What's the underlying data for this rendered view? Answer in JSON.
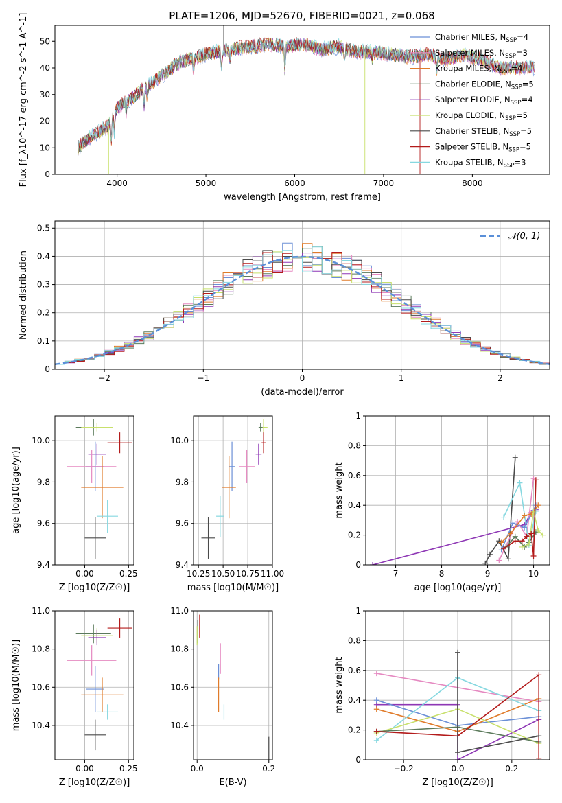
{
  "figure_title": "PLATE=1206, MJD=52670, FIBERID=0021, z=0.068",
  "chart_data": [
    {
      "id": "spectrum",
      "type": "line",
      "xlabel": "wavelength [Angstrom, rest frame]",
      "ylabel": "Flux [f_λ10^-17 erg cm^-2 s^-1 A^-1]",
      "xlim": [
        3300,
        8870
      ],
      "ylim": [
        0,
        56
      ],
      "xticks": [
        4000,
        5000,
        6000,
        7000,
        8000
      ],
      "yticks": [
        0,
        10,
        20,
        30,
        40,
        50
      ],
      "grid": false,
      "legend_position": "top-right",
      "continuum": {
        "x": [
          3560,
          3700,
          3900,
          4000,
          4100,
          4300,
          4500,
          4700,
          4900,
          5100,
          5300,
          5500,
          5700,
          5900,
          6100,
          6300,
          6500,
          6700,
          6900,
          7100,
          7300,
          7500,
          7700,
          7900,
          8100,
          8300,
          8500,
          8700
        ],
        "y": [
          10,
          14,
          18,
          25,
          27,
          32,
          37,
          42,
          44,
          46,
          47,
          48,
          49,
          48,
          49,
          47,
          48,
          46,
          46,
          45,
          44,
          45,
          43,
          45,
          43,
          40,
          40,
          40
        ]
      },
      "series": [
        {
          "name": "Chabrier MILES, N_SSP=4",
          "color": "#6b8fd6"
        },
        {
          "name": "Salpeter MILES, N_SSP=3",
          "color": "#e589c1"
        },
        {
          "name": "Kroupa MILES, N_SSP=4",
          "color": "#e07b2a"
        },
        {
          "name": "Chabrier ELODIE, N_SSP=5",
          "color": "#5b7a5b"
        },
        {
          "name": "Salpeter ELODIE, N_SSP=4",
          "color": "#8e37b5"
        },
        {
          "name": "Kroupa ELODIE, N_SSP=5",
          "color": "#c8e06c"
        },
        {
          "name": "Chabrier STELIB, N_SSP=5",
          "color": "#4a4a4a"
        },
        {
          "name": "Salpeter STELIB, N_SSP=5",
          "color": "#b31b1b"
        },
        {
          "name": "Kroupa STELIB, N_SSP=3",
          "color": "#86d8e0"
        }
      ]
    },
    {
      "id": "residuals",
      "type": "line",
      "xlabel": "(data-model)/error",
      "ylabel": "Normed distribution",
      "xlim": [
        -2.5,
        2.5
      ],
      "ylim": [
        0,
        0.525
      ],
      "xticks": [
        -2,
        -1,
        0,
        1,
        2
      ],
      "yticks": [
        0.0,
        0.1,
        0.2,
        0.3,
        0.4,
        0.5
      ],
      "grid": true,
      "legend_position": "top-right",
      "legend": "N(0,1)",
      "gaussian_color": "#5a8fd8",
      "bin_width": 0.1,
      "bin_start": -2.5
    },
    {
      "id": "age_vs_Z",
      "type": "scatter",
      "xlabel": "Z [log10(Z/Z☉)]",
      "ylabel": "age [log10(age/yr)]",
      "xlim": [
        -0.17,
        0.28
      ],
      "ylim": [
        9.4,
        10.12
      ],
      "xticks": [
        0.0,
        0.25
      ],
      "xtick_labels": [
        "0.00",
        "0.25"
      ],
      "yticks": [
        9.4,
        9.6,
        9.8,
        10.0
      ],
      "ytick_labels": [
        "9.4",
        "9.6",
        "9.8",
        "10.0"
      ],
      "grid": true,
      "points": [
        {
          "x": 0.05,
          "y": 10.065,
          "xerr": 0.1,
          "yerr": 0.04,
          "color": "#5b7a5b"
        },
        {
          "x": 0.07,
          "y": 10.065,
          "xerr": 0.09,
          "yerr": 0.02,
          "color": "#c8e06c"
        },
        {
          "x": 0.2,
          "y": 9.99,
          "xerr": 0.07,
          "yerr": 0.05,
          "color": "#b31b1b"
        },
        {
          "x": 0.07,
          "y": 9.935,
          "xerr": 0.05,
          "yerr": 0.05,
          "color": "#8e37b5"
        },
        {
          "x": 0.06,
          "y": 9.875,
          "xerr": 0.05,
          "yerr": 0.12,
          "color": "#6b8fd6"
        },
        {
          "x": 0.04,
          "y": 9.875,
          "xerr": 0.14,
          "yerr": 0.08,
          "color": "#e589c1"
        },
        {
          "x": 0.1,
          "y": 9.775,
          "xerr": 0.12,
          "yerr": 0.15,
          "color": "#e07b2a"
        },
        {
          "x": 0.13,
          "y": 9.635,
          "xerr": 0.06,
          "yerr": 0.08,
          "color": "#86d8e0"
        },
        {
          "x": 0.06,
          "y": 9.53,
          "xerr": 0.06,
          "yerr": 0.1,
          "color": "#4a4a4a"
        }
      ]
    },
    {
      "id": "age_vs_mass",
      "type": "scatter",
      "xlabel": "mass [log10(M/M☉)]",
      "ylabel": "",
      "xlim": [
        10.2,
        11.0
      ],
      "ylim": [
        9.4,
        10.12
      ],
      "xticks": [
        10.25,
        10.5,
        10.75,
        11.0
      ],
      "xtick_labels": [
        "10.25",
        "10.50",
        "10.75",
        "11.00"
      ],
      "yticks": [
        9.4,
        9.6,
        9.8,
        10.0
      ],
      "ytick_labels": [
        "9.4",
        "9.6",
        "9.8",
        "10.0"
      ],
      "grid": true,
      "points": [
        {
          "x": 10.91,
          "y": 10.065,
          "xerr": 0.04,
          "yerr": 0.04,
          "color": "#c8e06c"
        },
        {
          "x": 10.88,
          "y": 10.065,
          "xerr": 0.02,
          "yerr": 0.02,
          "color": "#5b7a5b"
        },
        {
          "x": 10.91,
          "y": 9.99,
          "xerr": 0.02,
          "yerr": 0.05,
          "color": "#b31b1b"
        },
        {
          "x": 10.86,
          "y": 9.935,
          "xerr": 0.03,
          "yerr": 0.05,
          "color": "#8e37b5"
        },
        {
          "x": 10.59,
          "y": 9.875,
          "xerr": 0.03,
          "yerr": 0.12,
          "color": "#6b8fd6"
        },
        {
          "x": 10.74,
          "y": 9.875,
          "xerr": 0.08,
          "yerr": 0.08,
          "color": "#e589c1"
        },
        {
          "x": 10.56,
          "y": 9.775,
          "xerr": 0.07,
          "yerr": 0.15,
          "color": "#e07b2a"
        },
        {
          "x": 10.47,
          "y": 9.635,
          "xerr": 0.04,
          "yerr": 0.1,
          "color": "#86d8e0"
        },
        {
          "x": 10.35,
          "y": 9.53,
          "xerr": 0.07,
          "yerr": 0.1,
          "color": "#4a4a4a"
        }
      ]
    },
    {
      "id": "weight_vs_age",
      "type": "line",
      "xlabel": "age [log10(age/yr)]",
      "ylabel": "mass weight",
      "xlim": [
        6.35,
        10.35
      ],
      "ylim": [
        0.0,
        1.0
      ],
      "xticks": [
        7,
        8,
        9,
        10
      ],
      "yticks": [
        0.0,
        0.2,
        0.4,
        0.6,
        0.8,
        1.0
      ],
      "grid": true,
      "series": [
        {
          "color": "#8e37b5",
          "x": [
            6.5,
            9.8,
            9.95,
            10.05
          ],
          "y": [
            0.0,
            0.27,
            0.35,
            0.37
          ]
        },
        {
          "color": "#4a4a4a",
          "x": [
            8.95,
            9.05,
            9.25,
            9.45,
            9.6
          ],
          "y": [
            0.01,
            0.07,
            0.16,
            0.04,
            0.72
          ]
        },
        {
          "color": "#e589c1",
          "x": [
            9.25,
            9.65,
            9.85,
            10.0
          ],
          "y": [
            0.03,
            0.29,
            0.19,
            0.58
          ]
        },
        {
          "color": "#86d8e0",
          "x": [
            9.35,
            9.7,
            9.9,
            10.05
          ],
          "y": [
            0.32,
            0.55,
            0.13,
            0.36
          ]
        },
        {
          "color": "#6b8fd6",
          "x": [
            9.3,
            9.55,
            9.8,
            10.05
          ],
          "y": [
            0.1,
            0.28,
            0.25,
            0.4
          ]
        },
        {
          "color": "#e07b2a",
          "x": [
            9.3,
            9.5,
            9.8,
            9.95,
            10.1
          ],
          "y": [
            0.15,
            0.21,
            0.33,
            0.34,
            0.4
          ]
        },
        {
          "color": "#5b7a5b",
          "x": [
            9.4,
            9.6,
            9.8,
            9.9,
            10.05
          ],
          "y": [
            0.12,
            0.19,
            0.12,
            0.15,
            0.22
          ]
        },
        {
          "color": "#c8e06c",
          "x": [
            9.75,
            9.9,
            10.0,
            10.1,
            10.2
          ],
          "y": [
            0.12,
            0.14,
            0.36,
            0.23,
            0.2
          ]
        },
        {
          "color": "#b31b1b",
          "x": [
            9.35,
            9.6,
            9.75,
            9.85,
            9.95,
            10.0,
            10.05
          ],
          "y": [
            0.11,
            0.16,
            0.16,
            0.19,
            0.21,
            0.06,
            0.57
          ]
        }
      ]
    },
    {
      "id": "mass_vs_Z",
      "type": "scatter",
      "xlabel": "Z [log10(Z/Z☉)]",
      "ylabel": "mass [log10(M/M☉)]",
      "xlim": [
        -0.17,
        0.28
      ],
      "ylim": [
        10.22,
        11.0
      ],
      "xticks": [
        0.0,
        0.25
      ],
      "xtick_labels": [
        "0.00",
        "0.25"
      ],
      "yticks": [
        10.4,
        10.6,
        10.8,
        11.0
      ],
      "ytick_labels": [
        "10.4",
        "10.6",
        "10.8",
        "11.0"
      ],
      "grid": true,
      "points": [
        {
          "x": 0.2,
          "y": 10.91,
          "xerr": 0.07,
          "yerr": 0.05,
          "color": "#b31b1b"
        },
        {
          "x": 0.05,
          "y": 10.88,
          "xerr": 0.1,
          "yerr": 0.05,
          "color": "#5b7a5b"
        },
        {
          "x": 0.07,
          "y": 10.87,
          "xerr": 0.09,
          "yerr": 0.04,
          "color": "#c8e06c"
        },
        {
          "x": 0.07,
          "y": 10.86,
          "xerr": 0.05,
          "yerr": 0.04,
          "color": "#8e37b5"
        },
        {
          "x": 0.04,
          "y": 10.74,
          "xerr": 0.14,
          "yerr": 0.08,
          "color": "#e589c1"
        },
        {
          "x": 0.06,
          "y": 10.59,
          "xerr": 0.05,
          "yerr": 0.12,
          "color": "#6b8fd6"
        },
        {
          "x": 0.1,
          "y": 10.56,
          "xerr": 0.12,
          "yerr": 0.09,
          "color": "#e07b2a"
        },
        {
          "x": 0.13,
          "y": 10.47,
          "xerr": 0.06,
          "yerr": 0.04,
          "color": "#86d8e0"
        },
        {
          "x": 0.06,
          "y": 10.35,
          "xerr": 0.06,
          "yerr": 0.08,
          "color": "#4a4a4a"
        }
      ]
    },
    {
      "id": "mass_vs_EBV",
      "type": "scatter",
      "xlabel": "E(B-V)",
      "ylabel": "",
      "xlim": [
        -0.01,
        0.21
      ],
      "ylim": [
        10.22,
        11.0
      ],
      "xticks": [
        0.0,
        0.2
      ],
      "xtick_labels": [
        "0.0",
        "0.2"
      ],
      "yticks": [
        10.4,
        10.6,
        10.8,
        11.0
      ],
      "ytick_labels": [
        "10.4",
        "10.6",
        "10.8",
        "11.0"
      ],
      "grid": true,
      "points": [
        {
          "x": 0.007,
          "y": 10.92,
          "yerr": 0.06,
          "color": "#b31b1b"
        },
        {
          "x": 0.002,
          "y": 10.89,
          "yerr": 0.06,
          "color": "#5b7a5b"
        },
        {
          "x": 0.0,
          "y": 10.87,
          "yerr": 0.05,
          "color": "#c8e06c"
        },
        {
          "x": 0.065,
          "y": 10.75,
          "yerr": 0.08,
          "color": "#e589c1"
        },
        {
          "x": 0.06,
          "y": 10.68,
          "yerr": 0.04,
          "color": "#6b8fd6"
        },
        {
          "x": 0.06,
          "y": 10.56,
          "yerr": 0.09,
          "color": "#e07b2a"
        },
        {
          "x": 0.075,
          "y": 10.47,
          "yerr": 0.04,
          "color": "#86d8e0"
        },
        {
          "x": 0.2,
          "y": 10.28,
          "yerr": 0.06,
          "color": "#4a4a4a"
        }
      ]
    },
    {
      "id": "weight_vs_Z",
      "type": "line",
      "xlabel": "Z [log10(Z/Z☉)]",
      "ylabel": "mass weight",
      "xlim": [
        -0.34,
        0.34
      ],
      "ylim": [
        0.0,
        1.0
      ],
      "xticks": [
        -0.2,
        0.0,
        0.2
      ],
      "xtick_labels": [
        "−0.2",
        "0.0",
        "0.2"
      ],
      "yticks": [
        0.0,
        0.2,
        0.4,
        0.6,
        0.8,
        1.0
      ],
      "grid": true,
      "series": [
        {
          "color": "#e589c1",
          "x": [
            -0.3,
            0.3
          ],
          "y": [
            0.58,
            0.39
          ]
        },
        {
          "color": "#8e37b5",
          "x": [
            -0.3,
            0.0,
            0.0,
            0.3
          ],
          "y": [
            0.37,
            0.37,
            0.0,
            0.27
          ]
        },
        {
          "color": "#6b8fd6",
          "x": [
            -0.3,
            0.0,
            0.3
          ],
          "y": [
            0.4,
            0.23,
            0.29
          ]
        },
        {
          "color": "#e07b2a",
          "x": [
            -0.3,
            0.0,
            0.3
          ],
          "y": [
            0.34,
            0.19,
            0.41
          ]
        },
        {
          "color": "#86d8e0",
          "x": [
            -0.3,
            0.0,
            0.3
          ],
          "y": [
            0.13,
            0.55,
            0.33
          ]
        },
        {
          "color": "#c8e06c",
          "x": [
            -0.3,
            0.0,
            0.3
          ],
          "y": [
            0.18,
            0.34,
            0.11
          ]
        },
        {
          "color": "#5b7a5b",
          "x": [
            -0.3,
            0.0,
            0.3
          ],
          "y": [
            0.19,
            0.22,
            0.12
          ]
        },
        {
          "color": "#b31b1b",
          "x": [
            -0.3,
            0.0,
            0.3,
            0.3
          ],
          "y": [
            0.19,
            0.16,
            0.57,
            0.01
          ]
        },
        {
          "color": "#4a4a4a",
          "x": [
            0.0,
            0.0,
            0.3
          ],
          "y": [
            0.72,
            0.05,
            0.16
          ]
        }
      ]
    }
  ]
}
